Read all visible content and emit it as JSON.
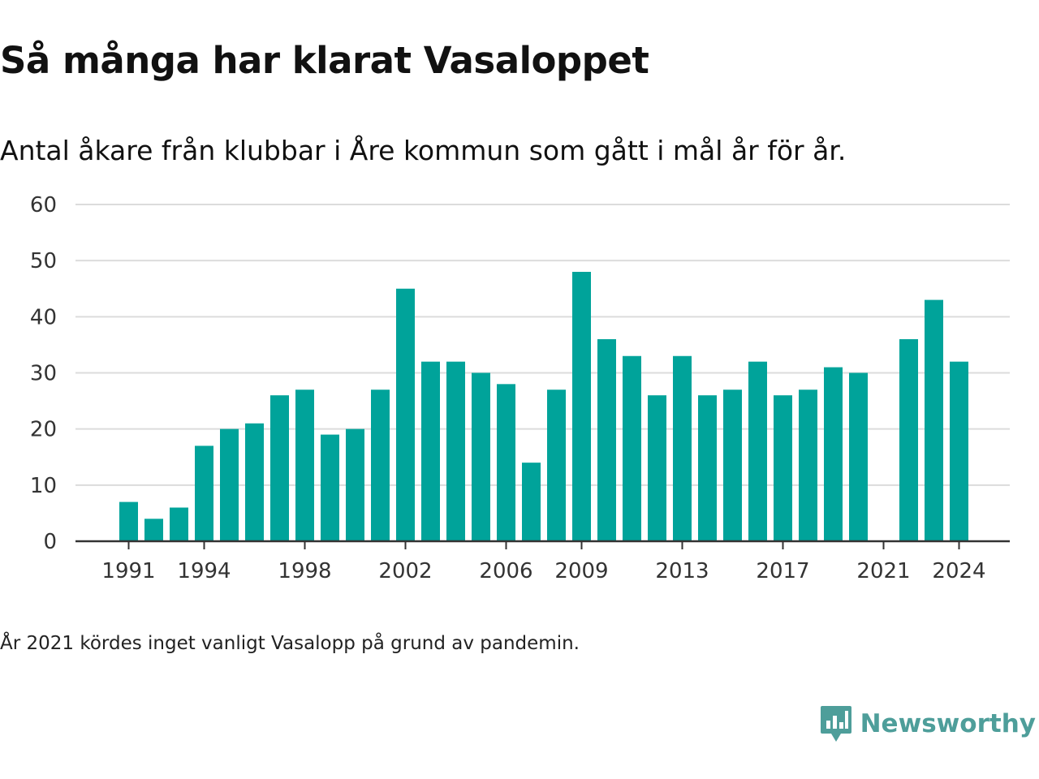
{
  "title": "Så många har klarat Vasaloppet",
  "subtitle": "Antal åkare från klubbar i Åre kommun som gått i mål år för år.",
  "note": "År 2021 kördes inget vanligt Vasalopp på grund av pandemin.",
  "brand": {
    "name": "Newsworthy",
    "icon": "newsworthy-logo-icon",
    "color": "#4e9e9a"
  },
  "colors": {
    "bar": "#00a39a",
    "grid": "#dcdcdc",
    "axis": "#333333"
  },
  "chart_data": {
    "type": "bar",
    "x": [
      1991,
      1992,
      1993,
      1994,
      1995,
      1996,
      1997,
      1998,
      1999,
      2000,
      2001,
      2002,
      2003,
      2004,
      2005,
      2006,
      2007,
      2008,
      2009,
      2010,
      2011,
      2012,
      2013,
      2014,
      2015,
      2016,
      2017,
      2018,
      2019,
      2020,
      2021,
      2022,
      2023,
      2024
    ],
    "values": [
      7,
      4,
      6,
      17,
      20,
      21,
      26,
      27,
      19,
      20,
      27,
      45,
      32,
      32,
      30,
      28,
      14,
      27,
      48,
      36,
      33,
      26,
      33,
      26,
      27,
      32,
      26,
      27,
      31,
      30,
      null,
      36,
      43,
      32
    ],
    "x_tick_labels": [
      "1991",
      "1994",
      "1998",
      "2002",
      "2006",
      "2009",
      "2013",
      "2017",
      "2021",
      "2024"
    ],
    "y_ticks": [
      0,
      10,
      20,
      30,
      40,
      50,
      60
    ],
    "ylim": [
      0,
      60
    ],
    "xlabel": "",
    "ylabel": "",
    "grid": true,
    "legend": false
  }
}
